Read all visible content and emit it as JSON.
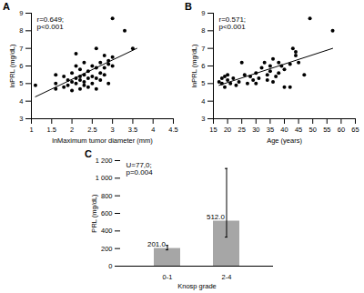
{
  "chart_data": [
    {
      "type": "scatter",
      "title": "A",
      "x_label": "lnMaximum tumor diameter (mm)",
      "y_label": "lnPRL (mg/dL)",
      "annotation": "r=0.649;\np<0.001",
      "color": "#000000",
      "marker": "circle",
      "x": [
        1.1,
        1.6,
        1.6,
        1.6,
        1.8,
        1.8,
        1.9,
        1.9,
        2.0,
        2.0,
        2.0,
        2.1,
        2.1,
        2.1,
        2.1,
        2.2,
        2.2,
        2.2,
        2.2,
        2.3,
        2.3,
        2.3,
        2.3,
        2.4,
        2.4,
        2.4,
        2.5,
        2.5,
        2.5,
        2.6,
        2.6,
        2.6,
        2.6,
        2.7,
        2.7,
        2.7,
        2.8,
        2.8,
        2.8,
        2.9,
        2.9,
        2.9,
        3.0,
        3.0,
        3.0,
        3.3,
        3.5
      ],
      "y": [
        4.9,
        4.7,
        5.0,
        5.5,
        4.8,
        5.4,
        4.9,
        5.2,
        4.6,
        5.1,
        5.6,
        5.0,
        5.3,
        6.0,
        6.7,
        4.7,
        5.2,
        5.4,
        5.8,
        4.9,
        5.1,
        5.5,
        6.2,
        4.8,
        5.3,
        5.7,
        5.0,
        5.4,
        6.0,
        4.7,
        5.3,
        5.9,
        7.0,
        5.2,
        5.6,
        6.2,
        5.5,
        5.9,
        6.6,
        5.0,
        6.1,
        6.3,
        6.0,
        6.5,
        8.7,
        8.0,
        7.0
      ],
      "trend_line": {
        "x": [
          1.1,
          3.6
        ],
        "y": [
          4.25,
          7.0
        ]
      },
      "xlim": [
        1,
        4.5
      ],
      "xticks": [
        1,
        1.5,
        2,
        2.5,
        3,
        3.5,
        4,
        4.5
      ],
      "ylim": [
        3,
        9
      ],
      "yticks": [
        3,
        4,
        5,
        6,
        7,
        8,
        9
      ]
    },
    {
      "type": "scatter",
      "title": "B",
      "x_label": "Age (years)",
      "y_label": "lnPRL (mg/dL)",
      "annotation": "r=0.571;\np<0.001",
      "color": "#000000",
      "marker": "circle",
      "x": [
        17,
        18,
        18,
        19,
        19,
        20,
        20,
        21,
        22,
        23,
        24,
        25,
        26,
        27,
        28,
        29,
        30,
        30,
        31,
        32,
        33,
        34,
        34,
        35,
        35,
        36,
        36,
        37,
        38,
        38,
        39,
        40,
        40,
        42,
        42,
        43,
        44,
        44,
        45,
        47,
        49,
        57
      ],
      "y": [
        5.1,
        5.3,
        5.0,
        4.8,
        5.4,
        5.2,
        5.5,
        5.0,
        5.3,
        4.9,
        5.1,
        6.2,
        5.5,
        5.0,
        5.4,
        5.2,
        5.0,
        5.6,
        5.3,
        5.9,
        6.2,
        5.2,
        5.5,
        5.7,
        6.0,
        5.1,
        6.4,
        5.4,
        5.6,
        6.2,
        6.0,
        5.8,
        4.8,
        4.8,
        6.1,
        7.0,
        6.6,
        6.8,
        6.2,
        5.5,
        8.7,
        8.0
      ],
      "trend_line": {
        "x": [
          17,
          57
        ],
        "y": [
          4.9,
          7.0
        ]
      },
      "xlim": [
        15,
        65
      ],
      "xticks": [
        15,
        20,
        25,
        30,
        35,
        40,
        45,
        50,
        55,
        60,
        65
      ],
      "ylim": [
        3,
        9
      ],
      "yticks": [
        3,
        4,
        5,
        6,
        7,
        8,
        9
      ]
    },
    {
      "type": "bar",
      "title": "C",
      "x_label": "Knosp grade",
      "y_label": "PRL (mg/dL)",
      "annotation": "U=77,0;\np=0.004",
      "color": "#a6a6a6",
      "categories": [
        "0-1",
        "2-4"
      ],
      "values": [
        201.0,
        512.0
      ],
      "value_labels": [
        "201.0",
        "512.0"
      ],
      "data_labels": true,
      "error_low": [
        185,
        330
      ],
      "error_high": [
        235,
        1110
      ],
      "ylim": [
        0,
        1200
      ],
      "yticks": [
        0,
        200,
        400,
        600,
        800,
        {
          "value": 1000,
          "label": "1 000"
        },
        {
          "value": 1200,
          "label": "1 200"
        }
      ]
    }
  ]
}
